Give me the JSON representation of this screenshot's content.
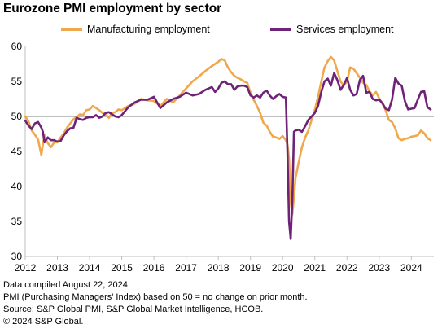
{
  "title": "Eurozone PMI employment by sector",
  "notes": [
    "Data compiled August 22, 2024.",
    "PMI (Purchasing Managers' Index) based on 50 = no change on prior month.",
    "Source: S&P Global PMI, S&P Global Market Intelligence, HCOB.",
    "© 2024 S&P Global."
  ],
  "chart_data": {
    "type": "line",
    "title": "Eurozone PMI employment by sector",
    "xlabel": "",
    "ylabel": "",
    "ylim": [
      30,
      60
    ],
    "xlim": [
      2012.0,
      2024.7
    ],
    "yticks": [
      30,
      35,
      40,
      45,
      50,
      55,
      60
    ],
    "xticks": [
      "2012",
      "2013",
      "2014",
      "2015",
      "2016",
      "2017",
      "2018",
      "2019",
      "2020",
      "2021",
      "2022",
      "2023",
      "2024"
    ],
    "reference_line": 50,
    "legend_position": "top",
    "series": [
      {
        "name": "Manufacturing employment",
        "color": "#f0a84c",
        "x": [
          2012.0,
          2012.1,
          2012.2,
          2012.3,
          2012.4,
          2012.5,
          2012.55,
          2012.6,
          2012.7,
          2012.8,
          2012.9,
          2013.0,
          2013.1,
          2013.2,
          2013.3,
          2013.4,
          2013.5,
          2013.6,
          2013.7,
          2013.8,
          2013.9,
          2014.0,
          2014.1,
          2014.2,
          2014.3,
          2014.4,
          2014.5,
          2014.6,
          2014.7,
          2014.8,
          2014.9,
          2015.0,
          2015.2,
          2015.4,
          2015.6,
          2015.8,
          2016.0,
          2016.2,
          2016.4,
          2016.6,
          2016.8,
          2017.0,
          2017.2,
          2017.4,
          2017.6,
          2017.8,
          2017.9,
          2018.0,
          2018.1,
          2018.2,
          2018.3,
          2018.4,
          2018.5,
          2018.6,
          2018.7,
          2018.8,
          2018.9,
          2019.0,
          2019.1,
          2019.2,
          2019.3,
          2019.4,
          2019.5,
          2019.6,
          2019.7,
          2019.8,
          2019.9,
          2020.0,
          2020.1,
          2020.15,
          2020.2,
          2020.25,
          2020.3,
          2020.35,
          2020.4,
          2020.5,
          2020.6,
          2020.7,
          2020.8,
          2020.9,
          2021.0,
          2021.1,
          2021.2,
          2021.3,
          2021.4,
          2021.5,
          2021.6,
          2021.7,
          2021.8,
          2021.9,
          2022.0,
          2022.1,
          2022.2,
          2022.3,
          2022.4,
          2022.5,
          2022.6,
          2022.7,
          2022.8,
          2022.9,
          2023.0,
          2023.1,
          2023.2,
          2023.3,
          2023.4,
          2023.5,
          2023.6,
          2023.7,
          2023.8,
          2023.9,
          2024.0,
          2024.1,
          2024.2,
          2024.3,
          2024.4,
          2024.5,
          2024.6
        ],
        "values": [
          50.0,
          49.3,
          48.0,
          47.4,
          46.7,
          44.5,
          46.0,
          47.3,
          46.2,
          45.6,
          46.3,
          46.3,
          47.0,
          47.6,
          48.4,
          49.0,
          49.6,
          49.9,
          50.3,
          50.2,
          50.9,
          51.0,
          51.5,
          51.2,
          50.9,
          50.5,
          50.3,
          49.8,
          50.5,
          50.6,
          51.0,
          50.9,
          51.5,
          51.8,
          52.5,
          52.3,
          52.2,
          51.5,
          52.5,
          52.0,
          53.0,
          54.0,
          55.0,
          55.7,
          56.5,
          57.2,
          57.5,
          57.8,
          58.2,
          58.0,
          57.0,
          56.3,
          55.8,
          55.5,
          55.3,
          55.0,
          54.8,
          53.4,
          52.4,
          51.5,
          50.5,
          49.1,
          48.7,
          47.8,
          47.1,
          47.0,
          46.8,
          47.2,
          46.6,
          46.0,
          44.0,
          37.8,
          36.0,
          38.5,
          41.2,
          43.5,
          45.6,
          47.0,
          48.0,
          49.5,
          50.9,
          52.8,
          55.0,
          57.0,
          57.9,
          58.5,
          58.0,
          56.5,
          55.0,
          54.4,
          55.0,
          57.0,
          56.8,
          56.2,
          55.5,
          54.8,
          54.5,
          53.6,
          53.0,
          53.5,
          52.6,
          51.8,
          50.9,
          49.5,
          49.2,
          48.3,
          46.9,
          46.6,
          46.8,
          46.9,
          47.1,
          47.2,
          47.3,
          48.0,
          47.6,
          46.9,
          46.6
        ]
      },
      {
        "name": "Services employment",
        "color": "#6e2278",
        "x": [
          2012.0,
          2012.1,
          2012.2,
          2012.3,
          2012.4,
          2012.5,
          2012.55,
          2012.6,
          2012.7,
          2012.8,
          2012.9,
          2013.0,
          2013.1,
          2013.2,
          2013.3,
          2013.4,
          2013.5,
          2013.6,
          2013.7,
          2013.8,
          2013.9,
          2014.0,
          2014.1,
          2014.2,
          2014.3,
          2014.4,
          2014.5,
          2014.6,
          2014.7,
          2014.8,
          2014.9,
          2015.0,
          2015.2,
          2015.4,
          2015.6,
          2015.8,
          2016.0,
          2016.2,
          2016.4,
          2016.6,
          2016.8,
          2017.0,
          2017.2,
          2017.4,
          2017.6,
          2017.8,
          2017.9,
          2018.0,
          2018.1,
          2018.2,
          2018.3,
          2018.4,
          2018.5,
          2018.6,
          2018.7,
          2018.8,
          2018.9,
          2019.0,
          2019.1,
          2019.2,
          2019.3,
          2019.4,
          2019.5,
          2019.6,
          2019.7,
          2019.8,
          2019.9,
          2020.0,
          2020.1,
          2020.15,
          2020.2,
          2020.25,
          2020.3,
          2020.35,
          2020.4,
          2020.5,
          2020.6,
          2020.7,
          2020.8,
          2020.9,
          2021.0,
          2021.1,
          2021.2,
          2021.3,
          2021.4,
          2021.5,
          2021.6,
          2021.7,
          2021.8,
          2021.9,
          2022.0,
          2022.1,
          2022.2,
          2022.3,
          2022.4,
          2022.5,
          2022.6,
          2022.7,
          2022.8,
          2022.9,
          2023.0,
          2023.1,
          2023.2,
          2023.3,
          2023.4,
          2023.5,
          2023.6,
          2023.7,
          2023.8,
          2023.9,
          2024.0,
          2024.1,
          2024.2,
          2024.3,
          2024.4,
          2024.5,
          2024.6
        ],
        "values": [
          49.4,
          48.7,
          48.2,
          49.0,
          49.2,
          48.4,
          47.8,
          46.3,
          47.0,
          46.6,
          46.6,
          46.4,
          46.5,
          47.3,
          47.9,
          48.3,
          48.4,
          49.8,
          49.6,
          49.5,
          49.8,
          49.9,
          49.9,
          50.2,
          49.8,
          50.0,
          50.5,
          50.6,
          50.3,
          50.0,
          49.9,
          50.2,
          51.3,
          52.0,
          52.4,
          52.4,
          52.8,
          51.2,
          52.0,
          52.5,
          52.8,
          53.4,
          53.0,
          53.2,
          53.8,
          54.2,
          53.5,
          54.0,
          54.8,
          55.0,
          54.6,
          54.6,
          53.8,
          54.3,
          54.4,
          54.4,
          54.2,
          53.0,
          52.7,
          53.0,
          52.7,
          53.4,
          53.7,
          53.0,
          52.5,
          52.9,
          53.2,
          52.8,
          52.7,
          45.0,
          35.0,
          32.5,
          38.0,
          47.8,
          48.0,
          48.1,
          47.8,
          48.6,
          49.5,
          50.0,
          50.5,
          51.5,
          53.5,
          55.0,
          55.4,
          54.4,
          56.2,
          55.2,
          53.8,
          54.5,
          55.5,
          53.8,
          53.0,
          53.2,
          55.2,
          55.8,
          53.4,
          53.5,
          52.5,
          52.3,
          52.4,
          51.9,
          51.1,
          50.9,
          52.4,
          55.5,
          54.7,
          54.4,
          52.2,
          51.0,
          51.1,
          51.2,
          52.4,
          53.5,
          53.6,
          51.3,
          51.0
        ]
      }
    ]
  }
}
